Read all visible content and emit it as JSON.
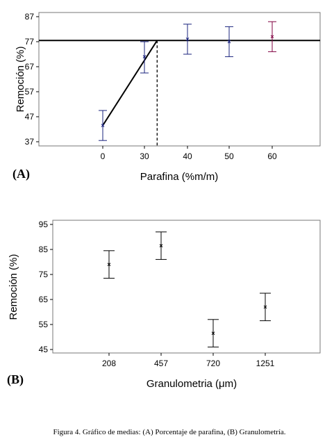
{
  "chart_data": [
    {
      "type": "scatter",
      "panel_label": "(A)",
      "xlabel": "Parafina (%m/m)",
      "ylabel": "Remoción (%)",
      "x_ticks": [
        "0",
        "30",
        "40",
        "50",
        "60"
      ],
      "y_ticks": [
        "37",
        "47",
        "57",
        "67",
        "77",
        "87"
      ],
      "ylim": [
        37,
        87
      ],
      "grid": false,
      "points": [
        {
          "x": "0",
          "mean": 43.5,
          "low": 37.5,
          "high": 49.5,
          "color": "#1a237e"
        },
        {
          "x": "30",
          "mean": 71.0,
          "low": 64.5,
          "high": 77.0,
          "color": "#1a237e"
        },
        {
          "x": "40",
          "mean": 78.0,
          "low": 72.0,
          "high": 84.0,
          "color": "#1a237e"
        },
        {
          "x": "50",
          "mean": 77.0,
          "low": 71.0,
          "high": 83.0,
          "color": "#1a237e"
        },
        {
          "x": "60",
          "mean": 79.0,
          "low": 73.0,
          "high": 85.0,
          "color": "#800040"
        }
      ],
      "fit": {
        "type": "breakpoint",
        "start_x": 0,
        "start_y": 43.5,
        "break_x": 33,
        "plateau_y": 77.5,
        "end_x": 60
      }
    },
    {
      "type": "scatter",
      "panel_label": "(B)",
      "xlabel": "Granulometria (μm)",
      "ylabel": "Remoción (%)",
      "x_ticks": [
        "208",
        "457",
        "720",
        "1251"
      ],
      "y_ticks": [
        "45",
        "55",
        "65",
        "75",
        "85",
        "95"
      ],
      "ylim": [
        45,
        95
      ],
      "grid": false,
      "points": [
        {
          "x": "208",
          "mean": 79.0,
          "low": 73.5,
          "high": 84.5
        },
        {
          "x": "457",
          "mean": 86.5,
          "low": 81.0,
          "high": 92.0
        },
        {
          "x": "720",
          "mean": 51.5,
          "low": 46.0,
          "high": 57.0
        },
        {
          "x": "1251",
          "mean": 62.0,
          "low": 56.5,
          "high": 67.5
        }
      ]
    }
  ],
  "caption": "Figura 4. Gráfico de medias: (A) Porcentaje de parafina, (B) Granulometría."
}
